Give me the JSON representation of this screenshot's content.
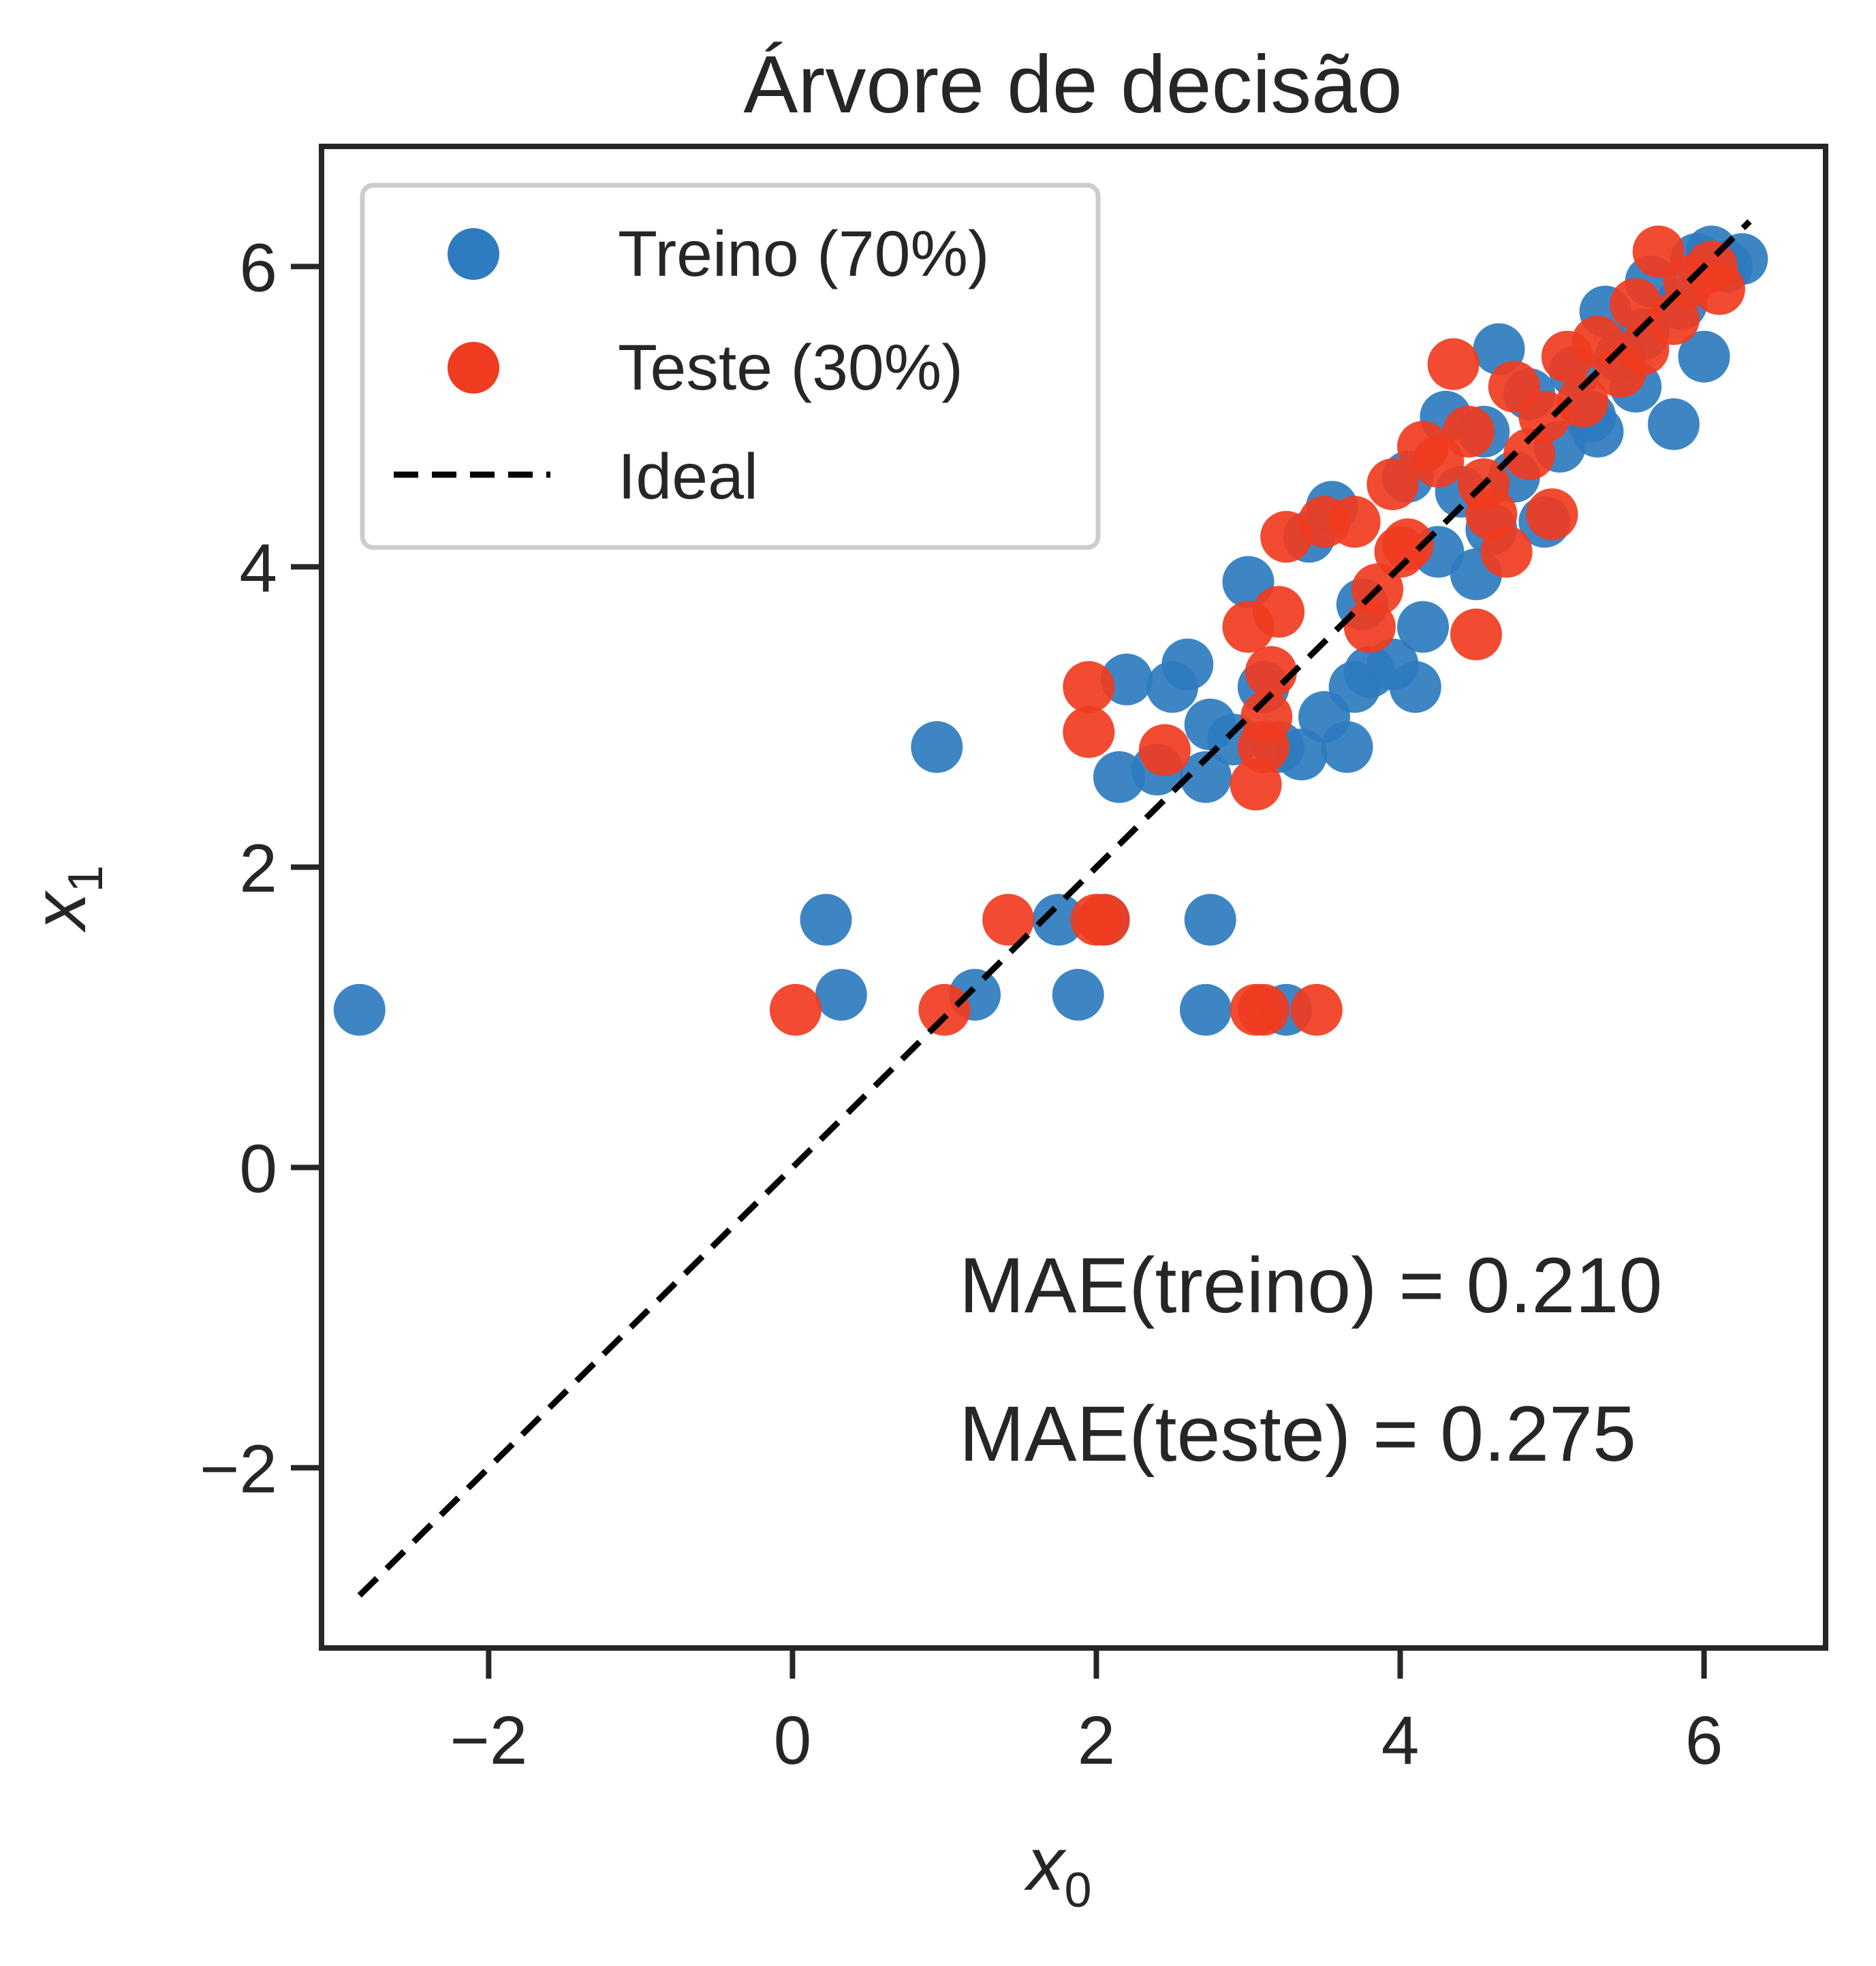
{
  "chart_data": {
    "type": "scatter",
    "title": "Árvore de decisão",
    "xlabel": {
      "base": "x",
      "sub": "0"
    },
    "ylabel": {
      "base": "x",
      "sub": "1"
    },
    "xlim": [
      -3.1,
      6.8
    ],
    "ylim": [
      -3.2,
      6.8
    ],
    "x_ticks": [
      -2,
      0,
      2,
      4,
      6
    ],
    "y_ticks": [
      -2,
      0,
      2,
      4,
      6
    ],
    "x_tick_labels": [
      "−2",
      "0",
      "2",
      "4",
      "6"
    ],
    "y_tick_labels": [
      "−2",
      "0",
      "2",
      "4",
      "6"
    ],
    "grid": false,
    "legend_position": "top-left",
    "series": [
      {
        "name": "Treino (70%)",
        "color": "#2e7bbf",
        "marker": "circle",
        "points": [
          [
            -2.85,
            1.05
          ],
          [
            0.95,
            2.8
          ],
          [
            0.22,
            1.65
          ],
          [
            0.32,
            1.15
          ],
          [
            1.2,
            1.15
          ],
          [
            1.75,
            1.65
          ],
          [
            1.88,
            1.15
          ],
          [
            2.05,
            1.65
          ],
          [
            2.72,
            1.05
          ],
          [
            2.75,
            1.65
          ],
          [
            3.25,
            1.05
          ],
          [
            2.15,
            2.6
          ],
          [
            2.2,
            3.25
          ],
          [
            2.4,
            2.65
          ],
          [
            2.5,
            3.2
          ],
          [
            2.6,
            3.35
          ],
          [
            2.72,
            2.6
          ],
          [
            2.75,
            2.95
          ],
          [
            2.9,
            2.85
          ],
          [
            3.0,
            3.9
          ],
          [
            3.1,
            3.2
          ],
          [
            3.2,
            2.8
          ],
          [
            3.35,
            2.75
          ],
          [
            3.5,
            3.0
          ],
          [
            3.65,
            2.8
          ],
          [
            3.4,
            4.2
          ],
          [
            3.55,
            4.4
          ],
          [
            3.7,
            3.2
          ],
          [
            3.8,
            3.3
          ],
          [
            3.95,
            3.35
          ],
          [
            4.1,
            3.2
          ],
          [
            4.05,
            4.6
          ],
          [
            4.25,
            4.1
          ],
          [
            4.3,
            5.0
          ],
          [
            4.4,
            4.5
          ],
          [
            4.55,
            4.9
          ],
          [
            4.5,
            3.95
          ],
          [
            4.65,
            5.45
          ],
          [
            4.75,
            4.6
          ],
          [
            4.85,
            5.15
          ],
          [
            4.95,
            4.3
          ],
          [
            5.05,
            4.8
          ],
          [
            5.15,
            5.3
          ],
          [
            5.25,
            5.0
          ],
          [
            5.35,
            5.7
          ],
          [
            5.45,
            5.4
          ],
          [
            5.55,
            5.2
          ],
          [
            5.6,
            5.55
          ],
          [
            5.65,
            5.9
          ],
          [
            5.8,
            4.95
          ],
          [
            5.85,
            5.75
          ],
          [
            5.95,
            6.05
          ],
          [
            6.0,
            5.4
          ],
          [
            6.05,
            6.1
          ],
          [
            6.15,
            6.0
          ],
          [
            6.25,
            6.05
          ],
          [
            5.3,
            4.9
          ],
          [
            4.15,
            3.6
          ],
          [
            3.75,
            3.75
          ],
          [
            4.6,
            4.25
          ]
        ]
      },
      {
        "name": "Teste (30%)",
        "color": "#f03c20",
        "marker": "circle",
        "points": [
          [
            0.02,
            1.05
          ],
          [
            1.0,
            1.05
          ],
          [
            1.42,
            1.65
          ],
          [
            1.95,
            3.2
          ],
          [
            1.95,
            2.9
          ],
          [
            2.0,
            1.65
          ],
          [
            2.05,
            1.65
          ],
          [
            2.45,
            2.78
          ],
          [
            3.05,
            1.05
          ],
          [
            3.1,
            1.05
          ],
          [
            3.45,
            1.05
          ],
          [
            3.05,
            2.55
          ],
          [
            3.1,
            2.8
          ],
          [
            3.12,
            3.0
          ],
          [
            3.15,
            3.3
          ],
          [
            3.0,
            3.6
          ],
          [
            3.2,
            3.7
          ],
          [
            3.25,
            4.2
          ],
          [
            3.5,
            4.3
          ],
          [
            3.7,
            4.3
          ],
          [
            3.8,
            3.6
          ],
          [
            3.85,
            3.85
          ],
          [
            3.95,
            4.55
          ],
          [
            4.05,
            4.15
          ],
          [
            4.15,
            4.8
          ],
          [
            4.25,
            4.7
          ],
          [
            4.35,
            5.35
          ],
          [
            4.45,
            4.9
          ],
          [
            4.5,
            3.55
          ],
          [
            4.6,
            4.35
          ],
          [
            4.7,
            4.1
          ],
          [
            4.75,
            5.2
          ],
          [
            4.85,
            4.75
          ],
          [
            4.95,
            5.0
          ],
          [
            5.0,
            4.35
          ],
          [
            5.1,
            5.4
          ],
          [
            5.2,
            5.1
          ],
          [
            5.3,
            5.5
          ],
          [
            5.45,
            5.3
          ],
          [
            5.6,
            5.45
          ],
          [
            5.7,
            6.1
          ],
          [
            5.8,
            5.65
          ],
          [
            5.9,
            5.9
          ],
          [
            6.05,
            6.0
          ],
          [
            6.1,
            5.85
          ],
          [
            4.55,
            4.55
          ],
          [
            4.0,
            4.1
          ],
          [
            5.55,
            5.75
          ]
        ]
      }
    ],
    "ideal_line": {
      "name": "Ideal",
      "style": "dashed",
      "color": "#000000",
      "x": [
        -2.85,
        6.3
      ],
      "y": [
        -2.85,
        6.3
      ]
    },
    "annotations": [
      "MAE(treino) = 0.210",
      "MAE(teste) = 0.275"
    ]
  }
}
